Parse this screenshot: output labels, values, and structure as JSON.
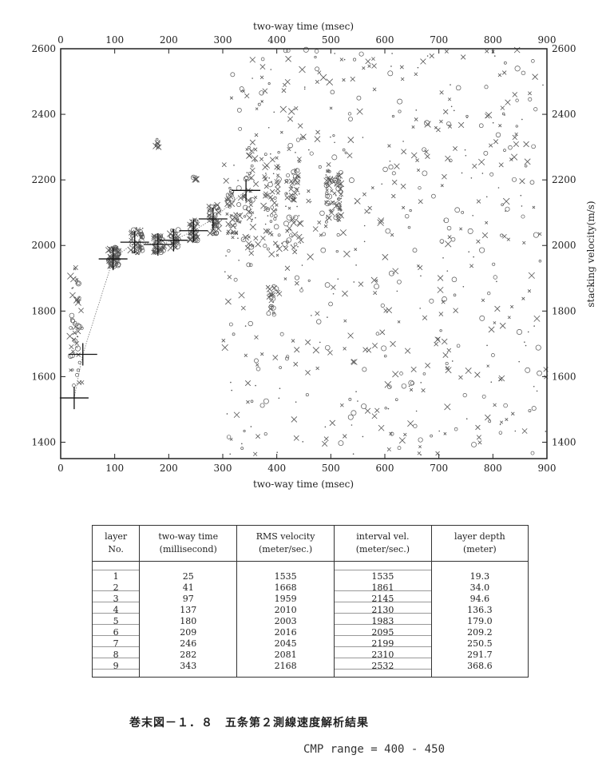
{
  "chart_data": {
    "type": "scatter",
    "title": "",
    "xlabel_top": "two-way time (msec)",
    "xlabel_bottom": "two-way time (msec)",
    "ylabel_right": "stacking velocity(m/s)",
    "xlim": [
      0,
      900
    ],
    "ylim": [
      1350,
      2600
    ],
    "xticks": [
      0,
      100,
      200,
      300,
      400,
      500,
      600,
      700,
      800,
      900
    ],
    "yticks": [
      1400,
      1600,
      1800,
      2000,
      2200,
      2400,
      2600
    ],
    "grid": false,
    "picks": {
      "name": "",
      "x": [
        25,
        41,
        97,
        137,
        180,
        209,
        246,
        282,
        343
      ],
      "y": [
        1535,
        1668,
        1959,
        2010,
        2003,
        2016,
        2045,
        2081,
        2168
      ]
    },
    "clusters": [
      {
        "x": 28,
        "y": 1760,
        "n": 55,
        "dx": 12,
        "dy": 190
      },
      {
        "x": 98,
        "y": 1965,
        "n": 70,
        "dx": 10,
        "dy": 30
      },
      {
        "x": 140,
        "y": 2015,
        "n": 50,
        "dx": 12,
        "dy": 40
      },
      {
        "x": 182,
        "y": 2005,
        "n": 50,
        "dx": 10,
        "dy": 30
      },
      {
        "x": 210,
        "y": 2020,
        "n": 35,
        "dx": 8,
        "dy": 30
      },
      {
        "x": 246,
        "y": 2045,
        "n": 50,
        "dx": 8,
        "dy": 35
      },
      {
        "x": 283,
        "y": 2080,
        "n": 55,
        "dx": 10,
        "dy": 45
      },
      {
        "x": 320,
        "y": 2100,
        "n": 45,
        "dx": 15,
        "dy": 80
      },
      {
        "x": 350,
        "y": 2150,
        "n": 45,
        "dx": 12,
        "dy": 160
      },
      {
        "x": 390,
        "y": 2120,
        "n": 55,
        "dx": 15,
        "dy": 160
      },
      {
        "x": 430,
        "y": 2110,
        "n": 55,
        "dx": 15,
        "dy": 120
      },
      {
        "x": 505,
        "y": 2150,
        "n": 80,
        "dx": 15,
        "dy": 80
      },
      {
        "x": 390,
        "y": 1830,
        "n": 18,
        "dx": 6,
        "dy": 50
      },
      {
        "x": 180,
        "y": 2310,
        "n": 8,
        "dx": 4,
        "dy": 15
      },
      {
        "x": 248,
        "y": 2205,
        "n": 6,
        "dx": 4,
        "dy": 8
      },
      {
        "x": 600,
        "y": 2000,
        "n": 600,
        "dx": 300,
        "dy": 640
      }
    ]
  },
  "table": {
    "headers": [
      [
        "layer",
        "No."
      ],
      [
        "two-way time",
        "(millisecond)"
      ],
      [
        "RMS velocity",
        "(meter/sec.)"
      ],
      [
        "interval vel.",
        "(meter/sec.)"
      ],
      [
        "layer depth",
        "(meter)"
      ]
    ],
    "rows": [
      {
        "layer": "1",
        "time": "25",
        "rms": "1535",
        "interval": "1535",
        "depth": "19.3"
      },
      {
        "layer": "2",
        "time": "41",
        "rms": "1668",
        "interval": "1861",
        "depth": "34.0"
      },
      {
        "layer": "3",
        "time": "97",
        "rms": "1959",
        "interval": "2145",
        "depth": "94.6"
      },
      {
        "layer": "4",
        "time": "137",
        "rms": "2010",
        "interval": "2130",
        "depth": "136.3"
      },
      {
        "layer": "5",
        "time": "180",
        "rms": "2003",
        "interval": "1983",
        "depth": "179.0"
      },
      {
        "layer": "6",
        "time": "209",
        "rms": "2016",
        "interval": "2095",
        "depth": "209.2"
      },
      {
        "layer": "7",
        "time": "246",
        "rms": "2045",
        "interval": "2199",
        "depth": "250.5"
      },
      {
        "layer": "8",
        "time": "282",
        "rms": "2081",
        "interval": "2310",
        "depth": "291.7"
      },
      {
        "layer": "9",
        "time": "343",
        "rms": "2168",
        "interval": "2532",
        "depth": "368.6"
      }
    ]
  },
  "caption": "巻末図－１．８　五条第２測線速度解析結果",
  "cmp_range": "CMP range = 400 - 450"
}
